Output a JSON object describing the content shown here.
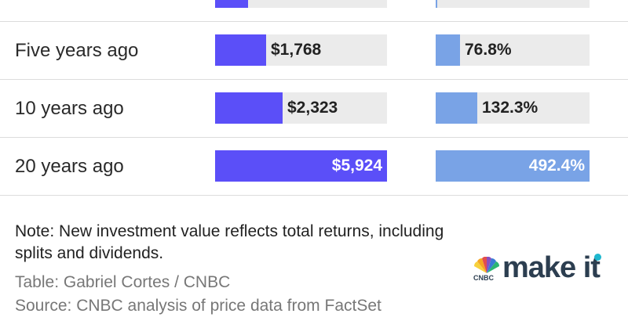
{
  "chart_data": {
    "type": "table",
    "columns": [
      {
        "name": "",
        "values": []
      },
      {
        "name": "",
        "values": [
          "",
          "$1,768",
          "$2,323",
          "$5,924"
        ],
        "numeric": [
          null,
          1768,
          2323,
          5924
        ],
        "max": 5924,
        "color": "#5b4ff8"
      },
      {
        "name": "",
        "values": [
          "",
          "76.8%",
          "132.3%",
          "492.4%"
        ],
        "numeric": [
          null,
          76.8,
          132.3,
          492.4
        ],
        "max": 492.4,
        "color": "#79a3e6"
      }
    ],
    "rows": [
      {
        "label": "",
        "value_fraction": 0.19,
        "return_fraction": 0.01
      },
      {
        "label": "Five years ago"
      },
      {
        "label": "10 years ago"
      },
      {
        "label": "20 years ago"
      }
    ]
  },
  "note": "Note: New investment value reflects total returns, including splits and dividends.",
  "credits": {
    "table": "Table: Gabriel Cortes / CNBC",
    "source": "Source: CNBC analysis of price data from FactSet"
  },
  "logo": {
    "brand": "CNBC",
    "text": "make it",
    "dot_color": "#1fb8cf",
    "text_color": "#2c3e50"
  },
  "colors": {
    "track": "#ebebeb",
    "divider": "#dcdcdc"
  }
}
